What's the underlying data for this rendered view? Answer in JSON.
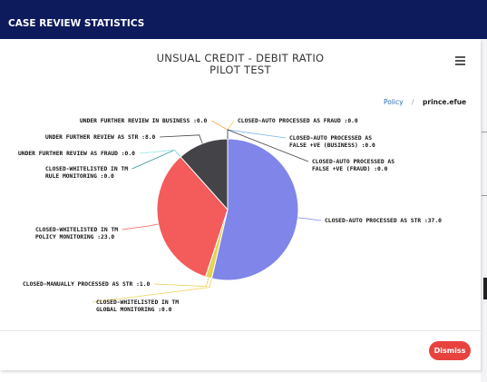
{
  "header": {
    "title": "CASE REVIEW STATISTICS"
  },
  "chart_data": {
    "type": "pie",
    "title": [
      "UNSUAL CREDIT - DEBIT RATIO",
      "PILOT TEST"
    ],
    "slices": [
      {
        "label": [
          "CLOSED-AUTO PROCESSED AS STR :37.0"
        ],
        "value": 37.0,
        "color": "#8085e9"
      },
      {
        "label": [
          "CLOSED-WHITELISTED IN TM",
          "GLOBAL MONITORING :0.0"
        ],
        "value": 0.0,
        "color": "#f1d257"
      },
      {
        "label": [
          "CLOSED-MANUALLY PROCESSED AS STR :1.0"
        ],
        "value": 1.0,
        "color": "#e4d354"
      },
      {
        "label": [
          "CLOSED-WHITELISTED IN TM",
          "POLICY MONITORING :23.0"
        ],
        "value": 23.0,
        "color": "#f45b5b"
      },
      {
        "label": [
          "CLOSED-WHITELISTED IN TM",
          "RULE MONITORING :0.0"
        ],
        "value": 0.0,
        "color": "#2b908f"
      },
      {
        "label": [
          "UNDER FURTHER REVIEW AS FRAUD :0.0"
        ],
        "value": 0.0,
        "color": "#91e8e1"
      },
      {
        "label": [
          "UNDER FURTHER REVIEW AS STR :8.0"
        ],
        "value": 8.0,
        "color": "#434348"
      },
      {
        "label": [
          "UNDER FURTHER REVIEW IN BUSINESS :0.0"
        ],
        "value": 0.0,
        "color": "#f7a35c"
      },
      {
        "label": [
          "CLOSED-AUTO PROCESSED AS FRAUD :0.0"
        ],
        "value": 0.0,
        "color": "#e4d354"
      },
      {
        "label": [
          "CLOSED-AUTO PROCESSED AS",
          "FALSE +VE (BUSINESS) :0.0"
        ],
        "value": 0.0,
        "color": "#7cb5ec"
      },
      {
        "label": [
          "CLOSED-AUTO PROCESSED AS",
          "FALSE +VE (FRAUD) :0.0"
        ],
        "value": 0.0,
        "color": "#434348"
      }
    ]
  },
  "breadcrumb": {
    "link": "Policy",
    "sep": "/",
    "user": "prince.efue"
  },
  "footer": {
    "dismiss": "Dismiss"
  }
}
